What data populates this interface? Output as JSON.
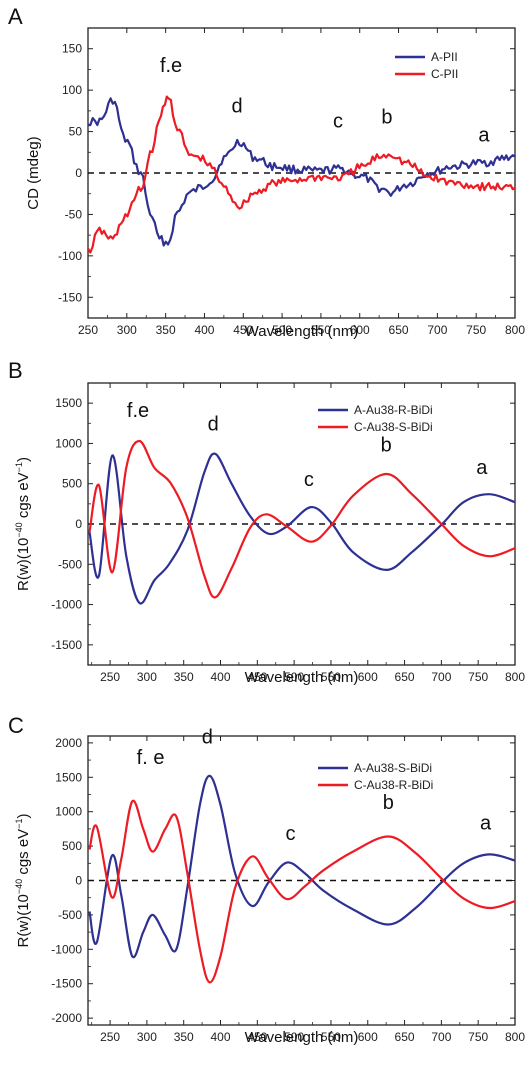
{
  "figure": {
    "background": "#ffffff"
  },
  "chart_data": [
    {
      "type": "line",
      "panel_label": "A",
      "xlabel": "Wavelength (nm)",
      "ylabel": "CD (mdeg)",
      "ylabel_unit": "",
      "xlim": [
        250,
        800
      ],
      "ylim": [
        -175,
        175
      ],
      "xticks": [
        250,
        300,
        350,
        400,
        450,
        500,
        550,
        600,
        650,
        700,
        750,
        800
      ],
      "yticks": [
        -150,
        -100,
        -50,
        0,
        50,
        100,
        150
      ],
      "grid": false,
      "legend_position": "top-right",
      "baseline": 0,
      "noise": 5,
      "series": [
        {
          "name": "A-PII",
          "color": "#2e3192",
          "points": [
            [
              250,
              62
            ],
            [
              265,
              62
            ],
            [
              282,
              88
            ],
            [
              298,
              40
            ],
            [
              318,
              0
            ],
            [
              330,
              -48
            ],
            [
              342,
              -80
            ],
            [
              353,
              -85
            ],
            [
              365,
              -48
            ],
            [
              380,
              -25
            ],
            [
              395,
              -18
            ],
            [
              410,
              -8
            ],
            [
              425,
              18
            ],
            [
              445,
              38
            ],
            [
              465,
              18
            ],
            [
              490,
              8
            ],
            [
              520,
              4
            ],
            [
              545,
              2
            ],
            [
              575,
              5
            ],
            [
              605,
              -5
            ],
            [
              625,
              -18
            ],
            [
              640,
              -24
            ],
            [
              660,
              -14
            ],
            [
              690,
              0
            ],
            [
              720,
              8
            ],
            [
              755,
              12
            ],
            [
              800,
              20
            ]
          ]
        },
        {
          "name": "C-PII",
          "color": "#ed1c24",
          "points": [
            [
              250,
              -95
            ],
            [
              265,
              -70
            ],
            [
              282,
              -80
            ],
            [
              298,
              -52
            ],
            [
              318,
              -20
            ],
            [
              333,
              30
            ],
            [
              344,
              72
            ],
            [
              354,
              92
            ],
            [
              365,
              55
            ],
            [
              380,
              22
            ],
            [
              395,
              18
            ],
            [
              410,
              6
            ],
            [
              425,
              -18
            ],
            [
              445,
              -40
            ],
            [
              465,
              -24
            ],
            [
              490,
              -12
            ],
            [
              520,
              -8
            ],
            [
              545,
              -5
            ],
            [
              575,
              -6
            ],
            [
              605,
              8
            ],
            [
              625,
              20
            ],
            [
              640,
              23
            ],
            [
              660,
              12
            ],
            [
              690,
              -5
            ],
            [
              720,
              -12
            ],
            [
              755,
              -16
            ],
            [
              800,
              -18
            ]
          ]
        }
      ],
      "peak_labels": [
        {
          "text": "f.e",
          "x": 357,
          "y": 122
        },
        {
          "text": "d",
          "x": 442,
          "y": 73
        },
        {
          "text": "c",
          "x": 572,
          "y": 55
        },
        {
          "text": "b",
          "x": 635,
          "y": 60
        },
        {
          "text": "a",
          "x": 760,
          "y": 38
        }
      ]
    },
    {
      "type": "line",
      "panel_label": "B",
      "xlabel": "Wavelength (nm)",
      "ylabel": "R(w)(10",
      "ylabel_exp": "−40",
      "ylabel_unit": "cgs eV",
      "ylabel_unit_exp": "−1",
      "ylabel_close": ")",
      "xlim": [
        220,
        800
      ],
      "ylim": [
        -1750,
        1750
      ],
      "xticks": [
        250,
        300,
        350,
        400,
        450,
        500,
        550,
        600,
        650,
        700,
        750,
        800
      ],
      "yticks": [
        -1500,
        -1000,
        -500,
        0,
        500,
        1000,
        1500
      ],
      "grid": false,
      "legend_position": "top-right",
      "baseline": 0,
      "noise": 0,
      "series": [
        {
          "name": "A-Au38-R-BiDi",
          "color": "#2e3192",
          "points": [
            [
              222,
              -100
            ],
            [
              235,
              -640
            ],
            [
              253,
              850
            ],
            [
              272,
              -400
            ],
            [
              290,
              -980
            ],
            [
              310,
              -700
            ],
            [
              330,
              -500
            ],
            [
              355,
              -80
            ],
            [
              378,
              640
            ],
            [
              393,
              870
            ],
            [
              415,
              500
            ],
            [
              440,
              100
            ],
            [
              465,
              -120
            ],
            [
              490,
              -30
            ],
            [
              523,
              210
            ],
            [
              550,
              20
            ],
            [
              580,
              -350
            ],
            [
              625,
              -570
            ],
            [
              660,
              -350
            ],
            [
              700,
              -10
            ],
            [
              730,
              270
            ],
            [
              765,
              370
            ],
            [
              800,
              270
            ]
          ]
        },
        {
          "name": "C-Au38-S-BiDi",
          "color": "#ed1c24",
          "points": [
            [
              222,
              -100
            ],
            [
              235,
              480
            ],
            [
              253,
              -600
            ],
            [
              272,
              700
            ],
            [
              290,
              1030
            ],
            [
              310,
              700
            ],
            [
              332,
              510
            ],
            [
              355,
              80
            ],
            [
              378,
              -640
            ],
            [
              393,
              -910
            ],
            [
              415,
              -550
            ],
            [
              440,
              -50
            ],
            [
              462,
              120
            ],
            [
              490,
              -30
            ],
            [
              523,
              -220
            ],
            [
              550,
              -20
            ],
            [
              580,
              350
            ],
            [
              625,
              620
            ],
            [
              660,
              370
            ],
            [
              700,
              0
            ],
            [
              730,
              -270
            ],
            [
              765,
              -400
            ],
            [
              800,
              -300
            ]
          ]
        }
      ],
      "peak_labels": [
        {
          "text": "f.e",
          "x": 288,
          "y": 1330
        },
        {
          "text": "d",
          "x": 390,
          "y": 1160
        },
        {
          "text": "c",
          "x": 520,
          "y": 470
        },
        {
          "text": "b",
          "x": 625,
          "y": 900
        },
        {
          "text": "a",
          "x": 755,
          "y": 620
        }
      ]
    },
    {
      "type": "line",
      "panel_label": "C",
      "xlabel": "Wavelength (nm)",
      "ylabel": "R(w)(10",
      "ylabel_exp": "−40",
      "ylabel_unit": "cgs eV",
      "ylabel_unit_exp": "−1",
      "ylabel_close": ")",
      "xlim": [
        220,
        800
      ],
      "ylim": [
        -2100,
        2100
      ],
      "xticks": [
        250,
        300,
        350,
        400,
        450,
        500,
        550,
        600,
        650,
        700,
        750,
        800
      ],
      "yticks": [
        -2000,
        -1500,
        -1000,
        -500,
        0,
        500,
        1000,
        1500,
        2000
      ],
      "grid": false,
      "legend_position": "top-right",
      "baseline": 0,
      "noise": 0,
      "series": [
        {
          "name": "A-Au38-S-BiDi",
          "color": "#2e3192",
          "points": [
            [
              222,
              -450
            ],
            [
              232,
              -900
            ],
            [
              252,
              350
            ],
            [
              265,
              -200
            ],
            [
              280,
              -1100
            ],
            [
              295,
              -750
            ],
            [
              308,
              -500
            ],
            [
              325,
              -800
            ],
            [
              340,
              -1000
            ],
            [
              355,
              -100
            ],
            [
              372,
              1100
            ],
            [
              385,
              1520
            ],
            [
              400,
              1100
            ],
            [
              420,
              100
            ],
            [
              443,
              -370
            ],
            [
              465,
              -30
            ],
            [
              490,
              260
            ],
            [
              515,
              100
            ],
            [
              540,
              -150
            ],
            [
              580,
              -420
            ],
            [
              628,
              -640
            ],
            [
              665,
              -400
            ],
            [
              700,
              -30
            ],
            [
              730,
              250
            ],
            [
              765,
              380
            ],
            [
              800,
              290
            ]
          ]
        },
        {
          "name": "C-Au38-R-BiDi",
          "color": "#ed1c24",
          "points": [
            [
              222,
              450
            ],
            [
              232,
              780
            ],
            [
              252,
              -240
            ],
            [
              265,
              300
            ],
            [
              280,
              1150
            ],
            [
              295,
              750
            ],
            [
              308,
              420
            ],
            [
              325,
              750
            ],
            [
              340,
              930
            ],
            [
              355,
              100
            ],
            [
              372,
              -1000
            ],
            [
              385,
              -1480
            ],
            [
              400,
              -1100
            ],
            [
              420,
              -100
            ],
            [
              443,
              350
            ],
            [
              465,
              30
            ],
            [
              490,
              -270
            ],
            [
              515,
              -80
            ],
            [
              540,
              150
            ],
            [
              580,
              420
            ],
            [
              628,
              640
            ],
            [
              665,
              400
            ],
            [
              700,
              30
            ],
            [
              730,
              -260
            ],
            [
              765,
              -400
            ],
            [
              800,
              -300
            ]
          ]
        }
      ],
      "peak_labels": [
        {
          "text": "f. e",
          "x": 305,
          "y": 1690
        },
        {
          "text": "d",
          "x": 382,
          "y": 1990
        },
        {
          "text": "c",
          "x": 495,
          "y": 590
        },
        {
          "text": "b",
          "x": 628,
          "y": 1040
        },
        {
          "text": "a",
          "x": 760,
          "y": 740
        }
      ]
    }
  ]
}
